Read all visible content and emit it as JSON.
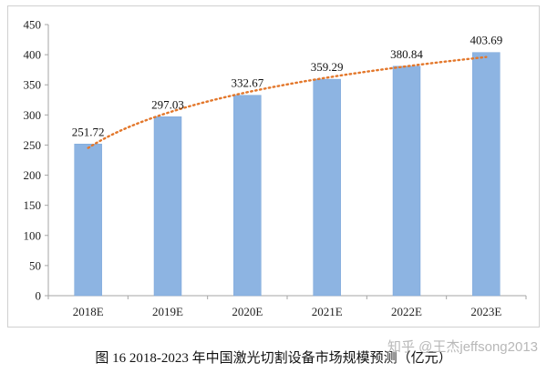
{
  "chart_data": {
    "type": "bar",
    "categories": [
      "2018E",
      "2019E",
      "2020E",
      "2021E",
      "2022E",
      "2023E"
    ],
    "values": [
      251.72,
      297.03,
      332.67,
      359.29,
      380.84,
      403.69
    ],
    "value_labels": [
      "251.72",
      "297.03",
      "332.67",
      "359.29",
      "380.84",
      "403.69"
    ],
    "y_ticks": [
      0,
      50,
      100,
      150,
      200,
      250,
      300,
      350,
      400,
      450
    ],
    "ylim": [
      0,
      450
    ],
    "grid": false,
    "legend": "none",
    "trendline": {
      "style": "dotted",
      "type": "log"
    },
    "colors": {
      "bar": "#8db4e2",
      "bar_edge": "#7aa6d9",
      "trendline": "#e3772b",
      "axis": "#a6a6a6"
    }
  },
  "caption": "图 16 2018-2023 年中国激光切割设备市场规模预测（亿元）",
  "watermark": "知乎 @王杰jeffsong2013"
}
